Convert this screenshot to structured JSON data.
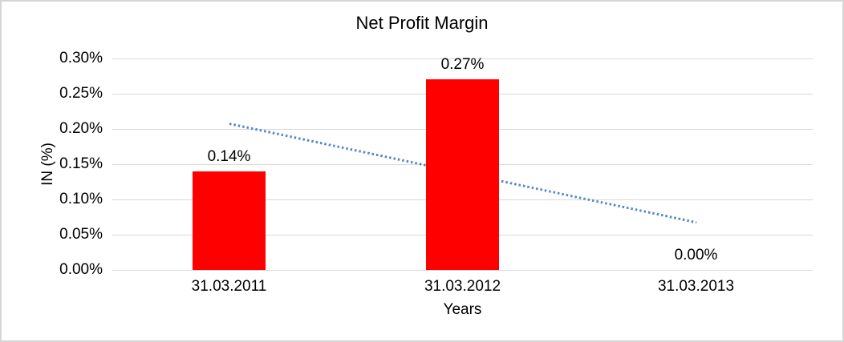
{
  "page": {
    "background_color": "#ffffff",
    "frame_border_color": "#d5d5d5"
  },
  "chart_data": {
    "type": "bar",
    "title": "Net Profit Margin",
    "xlabel": "Years",
    "ylabel": "IN (%)",
    "categories": [
      "31.03.2011",
      "31.03.2012",
      "31.03.2013"
    ],
    "series": [
      {
        "name": "Net Profit Margin",
        "values": [
          0.14,
          0.27,
          0.0
        ]
      }
    ],
    "data_labels": [
      "0.14%",
      "0.27%",
      "0.00%"
    ],
    "y_ticks": [
      "0.30%",
      "0.25%",
      "0.20%",
      "0.15%",
      "0.10%",
      "0.05%",
      "0.00%"
    ],
    "ylim": [
      0,
      0.3
    ],
    "grid": true,
    "legend": false,
    "bar_color": "#ff0000",
    "gridline_color": "#d9d9d9",
    "text_color": "#000000",
    "trendline": {
      "type": "linear",
      "style": "dotted",
      "color": "#5588c7",
      "start_value": 0.207,
      "end_value": 0.067
    }
  }
}
